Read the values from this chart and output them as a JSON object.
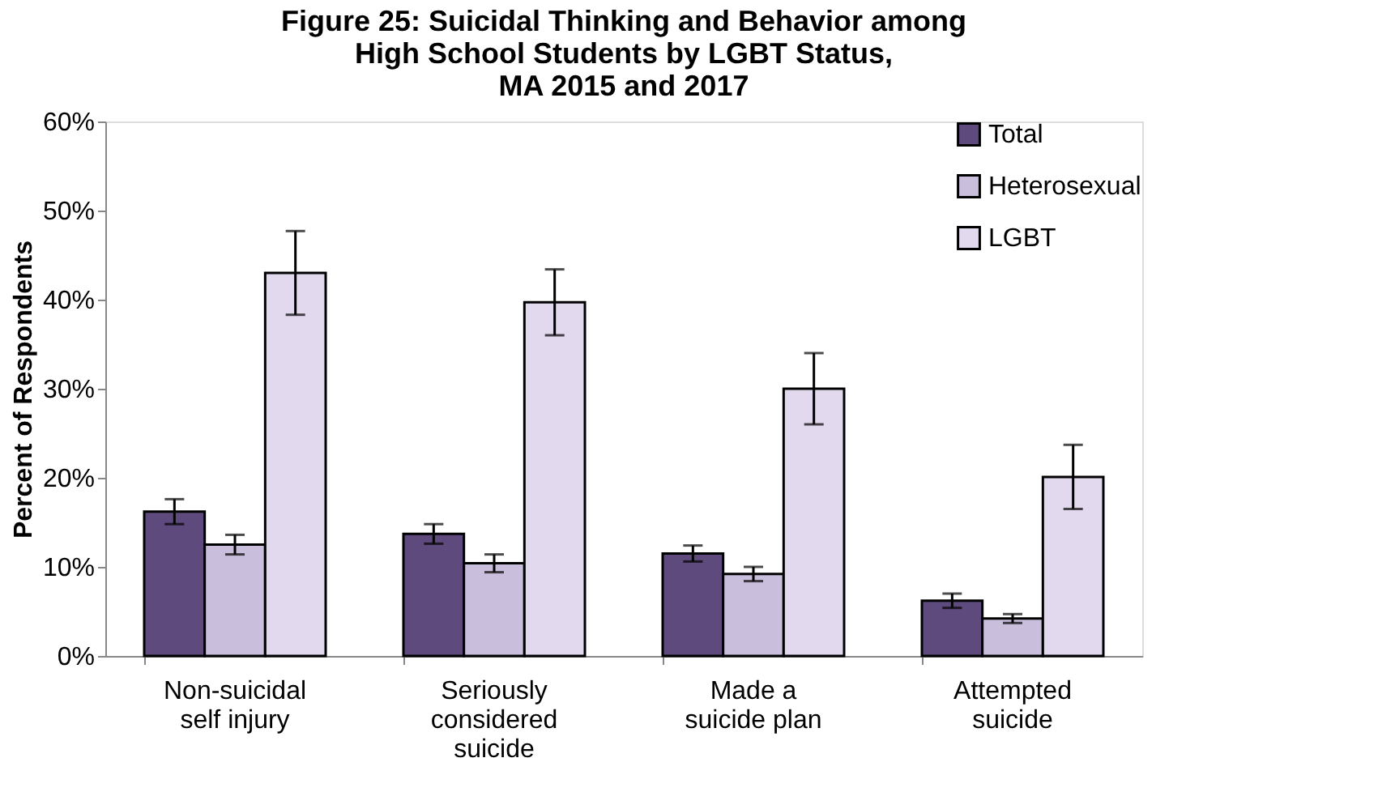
{
  "chart_data": {
    "type": "bar",
    "title": "Figure 25: Suicidal Thinking and Behavior among\nHigh School Students by LGBT Status,\nMA 2015 and 2017",
    "ylabel": "Percent of Respondents",
    "categories": [
      "Non-suicidal\nself injury",
      "Seriously\nconsidered\nsuicide",
      "Made a\nsuicide plan",
      "Attempted\nsuicide"
    ],
    "series": [
      {
        "name": "Total",
        "color": "#5e4a7c",
        "values": [
          16.2,
          13.7,
          11.5,
          6.2
        ],
        "errors": [
          1.4,
          1.1,
          0.9,
          0.8
        ]
      },
      {
        "name": "Heterosexual",
        "color": "#c9bedb",
        "values": [
          12.5,
          10.4,
          9.2,
          4.2
        ],
        "errors": [
          1.1,
          1.0,
          0.8,
          0.5
        ]
      },
      {
        "name": "LGBT",
        "color": "#e2d9ee",
        "values": [
          43.0,
          39.7,
          30.0,
          20.1
        ],
        "errors": [
          4.7,
          3.7,
          4.0,
          3.6
        ]
      }
    ],
    "ylim": [
      0,
      60
    ],
    "yticks": [
      {
        "value": 0,
        "label": "0%"
      },
      {
        "value": 10,
        "label": "10%"
      },
      {
        "value": 20,
        "label": "20%"
      },
      {
        "value": 30,
        "label": "30%"
      },
      {
        "value": 40,
        "label": "40%"
      },
      {
        "value": 50,
        "label": "50%"
      },
      {
        "value": 60,
        "label": "60%"
      }
    ],
    "grid": false,
    "legend": "top right"
  }
}
